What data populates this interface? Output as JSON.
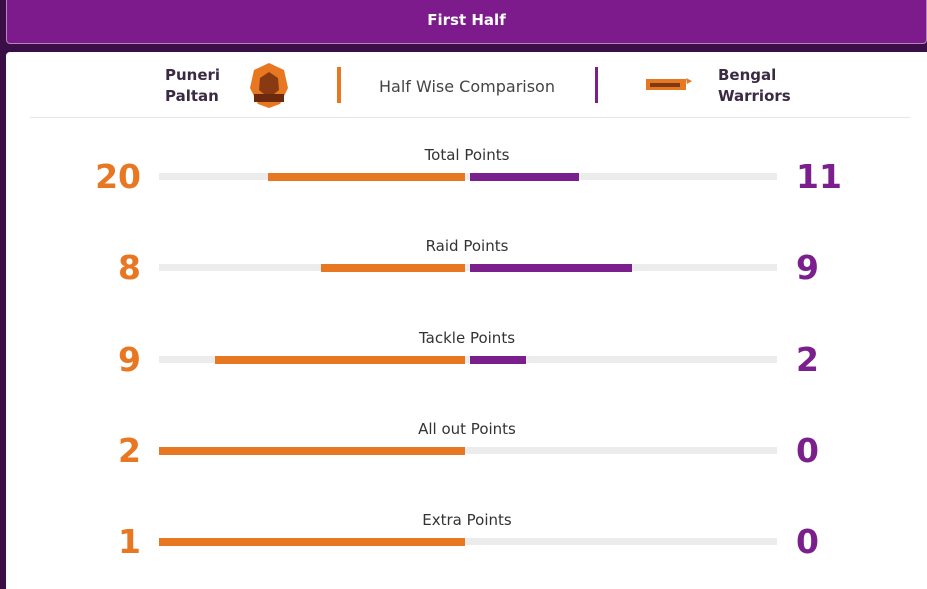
{
  "header": {
    "title": "First Half"
  },
  "comparison_title": "Half Wise Comparison",
  "teams": {
    "home": {
      "name": "Puneri Paltan",
      "color": "#e87722"
    },
    "away": {
      "name": "Bengal Warriors",
      "color": "#7b1f8c"
    }
  },
  "stats": [
    {
      "label": "Total Points",
      "home": 20,
      "away": 11
    },
    {
      "label": "Raid Points",
      "home": 8,
      "away": 9
    },
    {
      "label": "Tackle Points",
      "home": 9,
      "away": 2
    },
    {
      "label": "All out Points",
      "home": 2,
      "away": 0
    },
    {
      "label": "Extra Points",
      "home": 1,
      "away": 0
    }
  ]
}
